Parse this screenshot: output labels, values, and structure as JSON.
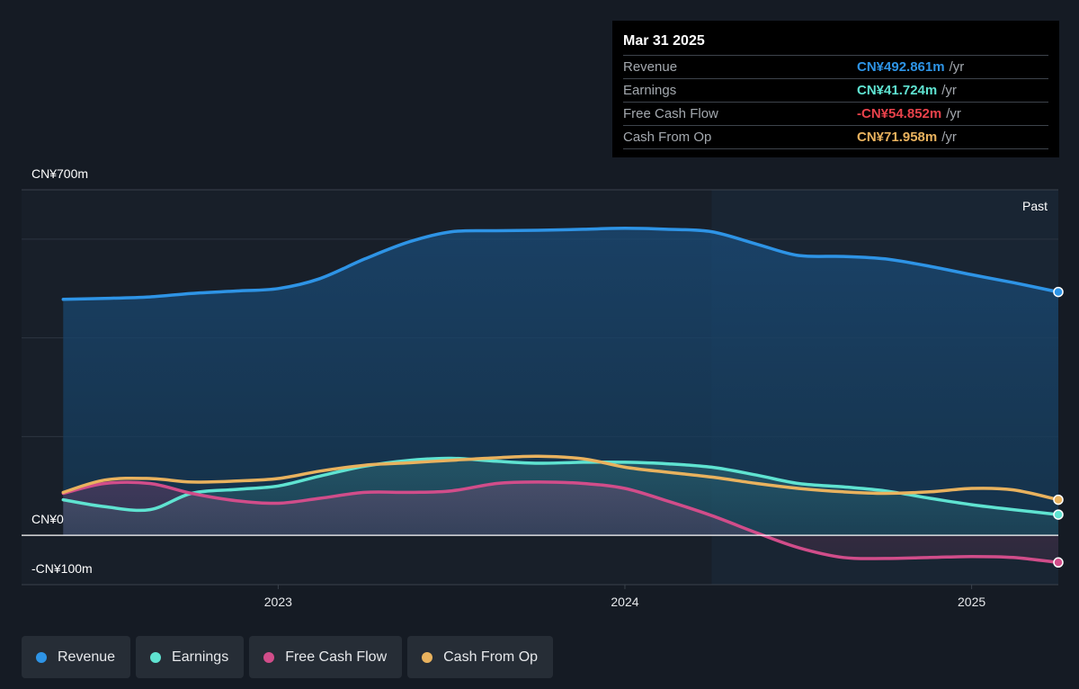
{
  "tooltip": {
    "date": "Mar 31 2025",
    "rows": [
      {
        "label": "Revenue",
        "value": "CN¥492.861m",
        "unit": "/yr",
        "color": "#2e94e6"
      },
      {
        "label": "Earnings",
        "value": "CN¥41.724m",
        "unit": "/yr",
        "color": "#5fe3d1"
      },
      {
        "label": "Free Cash Flow",
        "value": "-CN¥54.852m",
        "unit": "/yr",
        "color": "#e8424b"
      },
      {
        "label": "Cash From Op",
        "value": "CN¥71.958m",
        "unit": "/yr",
        "color": "#e9b25e"
      }
    ]
  },
  "legend": [
    {
      "label": "Revenue",
      "color": "#2e94e6"
    },
    {
      "label": "Earnings",
      "color": "#5fe3d1"
    },
    {
      "label": "Free Cash Flow",
      "color": "#d14d8a"
    },
    {
      "label": "Cash From Op",
      "color": "#e9b25e"
    }
  ],
  "chart_data": {
    "type": "line",
    "xlim": [
      2022.26,
      2025.25
    ],
    "ylim": [
      -100,
      700
    ],
    "y_ticks": [
      {
        "value": 700,
        "label": "CN¥700m"
      },
      {
        "value": 0,
        "label": "CN¥0"
      },
      {
        "value": -100,
        "label": "-CN¥100m"
      }
    ],
    "x_ticks": [
      {
        "value": 2023.0,
        "label": "2023"
      },
      {
        "value": 2024.0,
        "label": "2024"
      },
      {
        "value": 2025.0,
        "label": "2025"
      }
    ],
    "grid_values": [
      600,
      400,
      200
    ],
    "past_start": 2024.25,
    "past_label": "Past",
    "series": [
      {
        "name": "Revenue",
        "color": "#2e94e6",
        "fill": true,
        "x": [
          2022.38,
          2022.5,
          2022.63,
          2022.75,
          2022.88,
          2023.0,
          2023.12,
          2023.25,
          2023.38,
          2023.5,
          2023.63,
          2023.75,
          2023.88,
          2024.0,
          2024.12,
          2024.25,
          2024.38,
          2024.5,
          2024.63,
          2024.75,
          2024.88,
          2025.0,
          2025.12,
          2025.25
        ],
        "y": [
          478,
          480,
          483,
          490,
          495,
          500,
          520,
          560,
          595,
          615,
          617,
          618,
          620,
          622,
          620,
          615,
          590,
          567,
          565,
          560,
          545,
          528,
          512,
          493
        ]
      },
      {
        "name": "Earnings",
        "color": "#5fe3d1",
        "fill": true,
        "x": [
          2022.38,
          2022.5,
          2022.63,
          2022.75,
          2022.88,
          2023.0,
          2023.12,
          2023.25,
          2023.38,
          2023.5,
          2023.63,
          2023.75,
          2023.88,
          2024.0,
          2024.12,
          2024.25,
          2024.38,
          2024.5,
          2024.63,
          2024.75,
          2024.88,
          2025.0,
          2025.12,
          2025.25
        ],
        "y": [
          72,
          58,
          52,
          85,
          93,
          100,
          120,
          140,
          152,
          156,
          150,
          146,
          148,
          148,
          145,
          138,
          122,
          105,
          98,
          90,
          75,
          62,
          52,
          42
        ]
      },
      {
        "name": "Free Cash Flow",
        "color": "#d14d8a",
        "fill": true,
        "x": [
          2022.38,
          2022.5,
          2022.63,
          2022.75,
          2022.88,
          2023.0,
          2023.12,
          2023.25,
          2023.38,
          2023.5,
          2023.63,
          2023.75,
          2023.88,
          2024.0,
          2024.12,
          2024.25,
          2024.38,
          2024.5,
          2024.63,
          2024.75,
          2024.88,
          2025.0,
          2025.12,
          2025.25
        ],
        "y": [
          85,
          105,
          105,
          85,
          70,
          65,
          75,
          87,
          87,
          90,
          105,
          108,
          105,
          95,
          70,
          40,
          5,
          -25,
          -45,
          -47,
          -45,
          -43,
          -45,
          -55
        ]
      },
      {
        "name": "Cash From Op",
        "color": "#e9b25e",
        "fill": false,
        "x": [
          2022.38,
          2022.5,
          2022.63,
          2022.75,
          2022.88,
          2023.0,
          2023.12,
          2023.25,
          2023.38,
          2023.5,
          2023.63,
          2023.75,
          2023.88,
          2024.0,
          2024.12,
          2024.25,
          2024.38,
          2024.5,
          2024.63,
          2024.75,
          2024.88,
          2025.0,
          2025.12,
          2025.25
        ],
        "y": [
          87,
          112,
          115,
          108,
          110,
          115,
          130,
          142,
          147,
          152,
          157,
          160,
          155,
          138,
          128,
          118,
          105,
          95,
          88,
          85,
          88,
          95,
          92,
          72
        ]
      }
    ]
  }
}
